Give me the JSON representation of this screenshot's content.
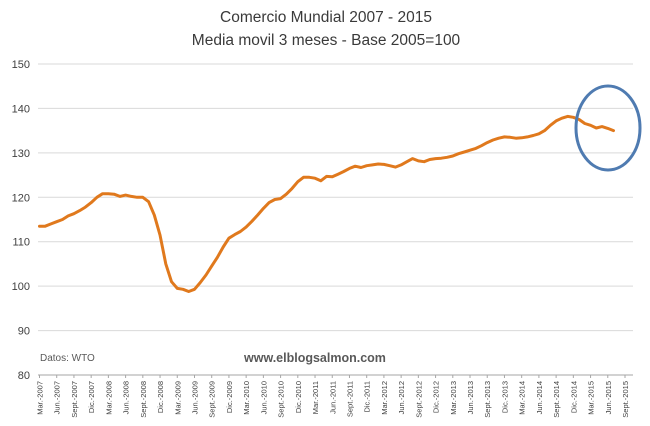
{
  "chart_data": {
    "type": "line",
    "title": "Comercio Mundial 2007 - 2015",
    "subtitle": "Media movil 3 meses - Base 2005=100",
    "source_note": "Datos: WTO",
    "watermark": "www.elblogsalmon.com",
    "ylim": [
      80,
      150
    ],
    "yticks": [
      80,
      90,
      100,
      110,
      120,
      130,
      140,
      150
    ],
    "xlabel": "",
    "ylabel": "",
    "grid": true,
    "legend": "none",
    "x_tick_labels": [
      "Mar.-2007",
      "Jun.-2007",
      "Sept.-2007",
      "Dic.-2007",
      "Mar.-2008",
      "Jun.-2008",
      "Sept.-2008",
      "Dic.-2008",
      "Mar.-2009",
      "Jun.-2009",
      "Sept.-2009",
      "Dic.-2009",
      "Mar.-2010",
      "Jun.-2010",
      "Sept.-2010",
      "Dic.-2010",
      "Mar.-2011",
      "Jun.-2011",
      "Sept.-2011",
      "Dic.-2011",
      "Mar.-2012",
      "Jun.-2012",
      "Sept.-2012",
      "Dic.-2012",
      "Mar.-2013",
      "Jun.-2013",
      "Sept.-2013",
      "Dic.-2013",
      "Mar.-2014",
      "Jun.-2014",
      "Sept.-2014",
      "Dic.-2014",
      "Mar.-2015",
      "Jun.-2015",
      "Sept.-2015"
    ],
    "x": [
      "2007-03",
      "2007-04",
      "2007-05",
      "2007-06",
      "2007-07",
      "2007-08",
      "2007-09",
      "2007-10",
      "2007-11",
      "2007-12",
      "2008-01",
      "2008-02",
      "2008-03",
      "2008-04",
      "2008-05",
      "2008-06",
      "2008-07",
      "2008-08",
      "2008-09",
      "2008-10",
      "2008-11",
      "2008-12",
      "2009-01",
      "2009-02",
      "2009-03",
      "2009-04",
      "2009-05",
      "2009-06",
      "2009-07",
      "2009-08",
      "2009-09",
      "2009-10",
      "2009-11",
      "2009-12",
      "2010-01",
      "2010-02",
      "2010-03",
      "2010-04",
      "2010-05",
      "2010-06",
      "2010-07",
      "2010-08",
      "2010-09",
      "2010-10",
      "2010-11",
      "2010-12",
      "2011-01",
      "2011-02",
      "2011-03",
      "2011-04",
      "2011-05",
      "2011-06",
      "2011-07",
      "2011-08",
      "2011-09",
      "2011-10",
      "2011-11",
      "2011-12",
      "2012-01",
      "2012-02",
      "2012-03",
      "2012-04",
      "2012-05",
      "2012-06",
      "2012-07",
      "2012-08",
      "2012-09",
      "2012-10",
      "2012-11",
      "2012-12",
      "2013-01",
      "2013-02",
      "2013-03",
      "2013-04",
      "2013-05",
      "2013-06",
      "2013-07",
      "2013-08",
      "2013-09",
      "2013-10",
      "2013-11",
      "2013-12",
      "2014-01",
      "2014-02",
      "2014-03",
      "2014-04",
      "2014-05",
      "2014-06",
      "2014-07",
      "2014-08",
      "2014-09",
      "2014-10",
      "2014-11",
      "2014-12",
      "2015-01",
      "2015-02",
      "2015-03",
      "2015-04",
      "2015-05",
      "2015-06",
      "2015-07"
    ],
    "series": [
      {
        "color": "#E0791D",
        "values": [
          113.5,
          113.5,
          114.0,
          114.5,
          115.0,
          115.8,
          116.3,
          117.0,
          117.8,
          118.8,
          120.0,
          120.8,
          120.8,
          120.7,
          120.2,
          120.5,
          120.2,
          120.0,
          120.0,
          119.0,
          116.0,
          111.5,
          105.0,
          101.0,
          99.5,
          99.3,
          98.8,
          99.3,
          100.8,
          102.5,
          104.5,
          106.5,
          108.8,
          110.8,
          111.6,
          112.3,
          113.3,
          114.6,
          116.0,
          117.5,
          118.8,
          119.5,
          119.7,
          120.7,
          122.0,
          123.5,
          124.5,
          124.5,
          124.3,
          123.7,
          124.7,
          124.6,
          125.2,
          125.8,
          126.5,
          127.0,
          126.7,
          127.1,
          127.3,
          127.5,
          127.4,
          127.1,
          126.8,
          127.3,
          128.0,
          128.7,
          128.2,
          128.0,
          128.5,
          128.7,
          128.8,
          129.0,
          129.3,
          129.8,
          130.2,
          130.6,
          131.0,
          131.6,
          132.3,
          132.9,
          133.3,
          133.6,
          133.5,
          133.3,
          133.4,
          133.6,
          133.9,
          134.3,
          135.0,
          136.2,
          137.2,
          137.8,
          138.2,
          138.0,
          137.5,
          136.6,
          136.2,
          135.6,
          135.9,
          135.5,
          135.0
        ]
      }
    ],
    "annotation": {
      "type": "ellipse",
      "color": "#4F7BB1"
    }
  }
}
